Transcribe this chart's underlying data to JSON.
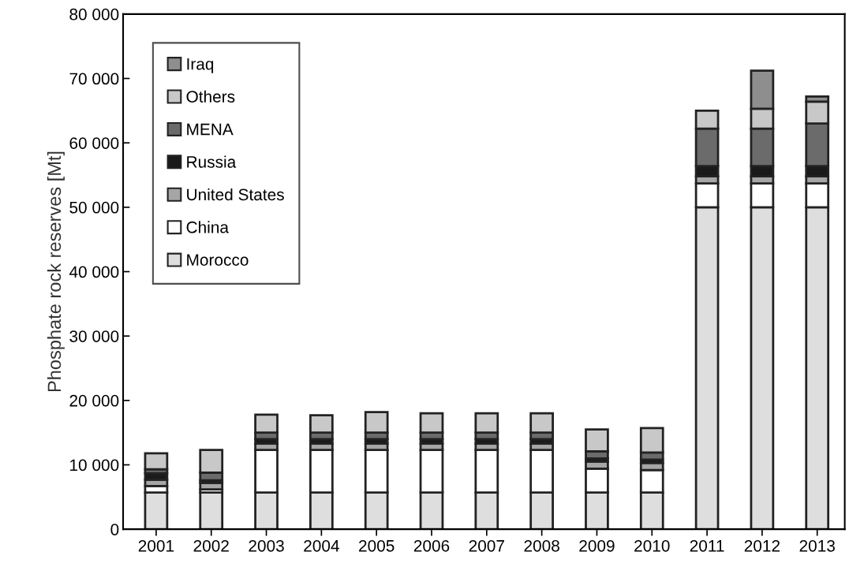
{
  "chart_data": {
    "type": "bar",
    "stacked": true,
    "ylabel": "Phosphate rock reserves [Mt]",
    "categories": [
      "2001",
      "2002",
      "2003",
      "2004",
      "2005",
      "2006",
      "2007",
      "2008",
      "2009",
      "2010",
      "2011",
      "2012",
      "2013"
    ],
    "series": [
      {
        "name": "Morocco",
        "color": "#dedede",
        "values": [
          5700,
          5700,
          5700,
          5700,
          5700,
          5700,
          5700,
          5700,
          5700,
          5700,
          50000,
          50000,
          50000
        ]
      },
      {
        "name": "China",
        "color": "#ffffff",
        "values": [
          1000,
          500,
          6600,
          6600,
          6600,
          6600,
          6600,
          6600,
          3700,
          3500,
          3700,
          3700,
          3700
        ]
      },
      {
        "name": "United States",
        "color": "#a6a6a6",
        "values": [
          1000,
          1000,
          1000,
          1000,
          1000,
          1000,
          1000,
          1000,
          1100,
          1100,
          1100,
          1100,
          1100
        ]
      },
      {
        "name": "Russia",
        "color": "#1a1a1a",
        "values": [
          1000,
          400,
          700,
          700,
          700,
          700,
          700,
          700,
          500,
          500,
          1600,
          1600,
          1600
        ]
      },
      {
        "name": "MENA",
        "color": "#6b6b6b",
        "values": [
          600,
          1200,
          1000,
          1000,
          1000,
          1000,
          1000,
          1000,
          1100,
          1100,
          5800,
          5800,
          6600
        ]
      },
      {
        "name": "Others",
        "color": "#c8c8c8",
        "values": [
          2500,
          3500,
          2800,
          2700,
          3200,
          3000,
          3000,
          3000,
          3400,
          3800,
          2800,
          3100,
          3400
        ]
      },
      {
        "name": "Iraq",
        "color": "#8e8e8e",
        "values": [
          null,
          null,
          null,
          null,
          null,
          null,
          null,
          null,
          null,
          null,
          null,
          5900,
          800
        ]
      }
    ],
    "ylim": [
      0,
      80000
    ],
    "yticks": [
      {
        "value": 0,
        "label": "0"
      },
      {
        "value": 10000,
        "label": "10 000"
      },
      {
        "value": 20000,
        "label": "20 000"
      },
      {
        "value": 30000,
        "label": "30 000"
      },
      {
        "value": 40000,
        "label": "40 000"
      },
      {
        "value": 50000,
        "label": "50 000"
      },
      {
        "value": 60000,
        "label": "60 000"
      },
      {
        "value": 70000,
        "label": "70 000"
      },
      {
        "value": 80000,
        "label": "80 000"
      }
    ],
    "legend": "top left",
    "grid": false
  }
}
